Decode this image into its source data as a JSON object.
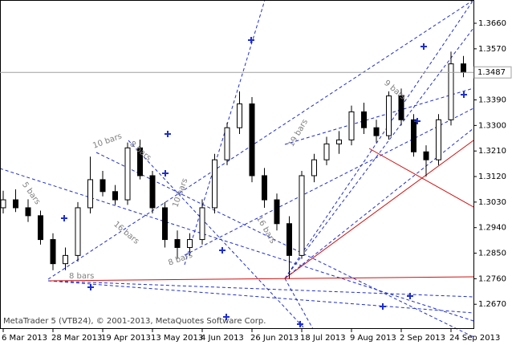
{
  "chart_data": {
    "type": "candlestick",
    "categories": [
      "6 Mar 2013",
      null,
      null,
      null,
      "28 Mar 2013",
      null,
      null,
      null,
      "19 Apr 2013",
      null,
      null,
      null,
      "13 May 2013",
      null,
      null,
      null,
      "4 Jun 2013",
      null,
      null,
      null,
      "26 Jun 2013",
      null,
      null,
      null,
      "18 Jul 2013",
      null,
      null,
      null,
      "9 Aug 2013",
      null,
      null,
      null,
      "2 Sep 2013",
      null,
      null,
      null,
      "24 Sep 2013",
      null
    ],
    "open": [
      1.301,
      1.3038,
      1.301,
      1.2982,
      1.2898,
      1.2813,
      1.2842,
      1.301,
      1.3109,
      1.3067,
      1.3038,
      1.3221,
      1.3123,
      1.301,
      1.2898,
      1.287,
      1.2898,
      1.301,
      1.3179,
      1.3292,
      1.3376,
      1.3123,
      1.3038,
      1.2954,
      1.2842,
      1.3123,
      1.3179,
      1.3235,
      1.3249,
      1.3348,
      1.3292,
      1.3264,
      1.3404,
      1.332,
      1.3207,
      1.3179,
      1.332,
      1.3517
    ],
    "high": [
      1.307,
      1.3075,
      1.304,
      1.3,
      1.292,
      1.287,
      1.303,
      1.319,
      1.314,
      1.309,
      1.324,
      1.325,
      1.314,
      1.303,
      1.293,
      1.292,
      1.304,
      1.32,
      1.331,
      1.342,
      1.34,
      1.315,
      1.306,
      1.298,
      1.314,
      1.32,
      1.326,
      1.328,
      1.337,
      1.338,
      1.332,
      1.342,
      1.343,
      1.334,
      1.323,
      1.334,
      1.356,
      1.3545
    ],
    "low": [
      1.299,
      1.2995,
      1.296,
      1.288,
      1.279,
      1.279,
      1.282,
      1.299,
      1.305,
      1.302,
      1.302,
      1.311,
      1.299,
      1.287,
      1.283,
      1.284,
      1.288,
      1.299,
      1.316,
      1.327,
      1.31,
      1.301,
      1.293,
      1.276,
      1.283,
      1.31,
      1.316,
      1.32,
      1.323,
      1.327,
      1.324,
      1.325,
      1.33,
      1.319,
      1.312,
      1.316,
      1.33,
      1.347
    ],
    "close": [
      1.3038,
      1.301,
      1.2982,
      1.2898,
      1.2813,
      1.2842,
      1.301,
      1.3109,
      1.3067,
      1.3038,
      1.3221,
      1.3123,
      1.301,
      1.2898,
      1.287,
      1.2898,
      1.301,
      1.3179,
      1.3292,
      1.3376,
      1.3123,
      1.3038,
      1.2954,
      1.2842,
      1.3123,
      1.3179,
      1.3235,
      1.3249,
      1.3348,
      1.3292,
      1.3264,
      1.3404,
      1.332,
      1.3207,
      1.3179,
      1.332,
      1.3517,
      1.3487
    ],
    "ylim": [
      1.2583,
      1.3742
    ],
    "yticks": [
      {
        "value": 1.267,
        "label": "1.2670"
      },
      {
        "value": 1.276,
        "label": "1.2760"
      },
      {
        "value": 1.285,
        "label": "1.2850"
      },
      {
        "value": 1.294,
        "label": "1.2940"
      },
      {
        "value": 1.303,
        "label": "1.3030"
      },
      {
        "value": 1.312,
        "label": "1.3120"
      },
      {
        "value": 1.321,
        "label": "1.3210"
      },
      {
        "value": 1.33,
        "label": "1.3300"
      },
      {
        "value": 1.339,
        "label": "1.3390"
      },
      {
        "value": 1.348,
        "label": "1.3480"
      },
      {
        "value": 1.357,
        "label": "1.3570"
      },
      {
        "value": 1.366,
        "label": "1.3660"
      }
    ],
    "current_price": 1.3487,
    "annotations": [
      "5 bars",
      "10 bars",
      "8 bars",
      "16 bars",
      "10 bars",
      "8 bars",
      "19 bars",
      "9 bars",
      "16 bars",
      "8 bars"
    ],
    "footer": "MetaTrader 5 (VTB24), © 2001-2013, MetaQuotes Software Corp."
  }
}
